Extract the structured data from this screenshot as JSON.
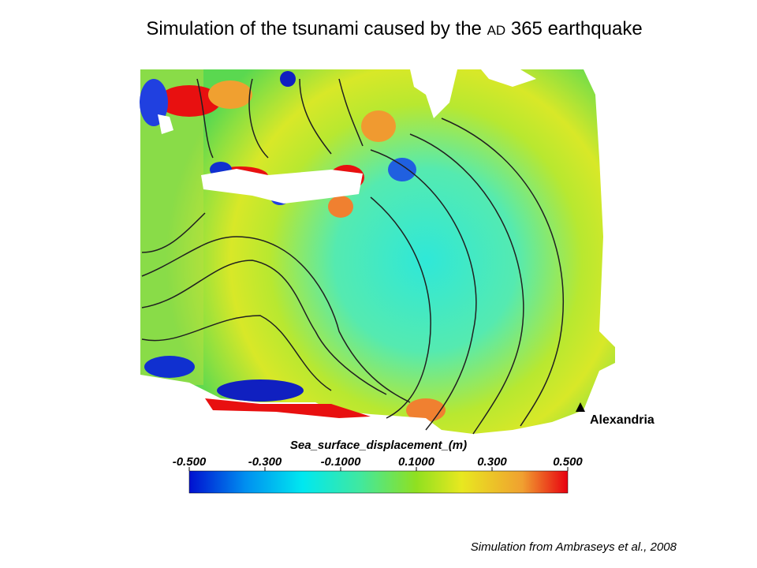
{
  "title_parts": [
    "Simulation of the tsunami caused by the ",
    "AD",
    " 365 earthquake"
  ],
  "colorbar": {
    "label": "Sea_surface_displacement_(m)",
    "lim": [
      -0.5,
      0.5
    ],
    "ticks": [
      {
        "value": -0.5,
        "label": "-0.500"
      },
      {
        "value": -0.3,
        "label": "-0.300"
      },
      {
        "value": -0.1,
        "label": "-0.1000"
      },
      {
        "value": 0.1,
        "label": "0.1000"
      },
      {
        "value": 0.3,
        "label": "0.300"
      },
      {
        "value": 0.5,
        "label": "0.500"
      }
    ]
  },
  "marker": {
    "label": "Alexandria"
  },
  "credit": "Simulation from Ambraseys et al., 2008"
}
